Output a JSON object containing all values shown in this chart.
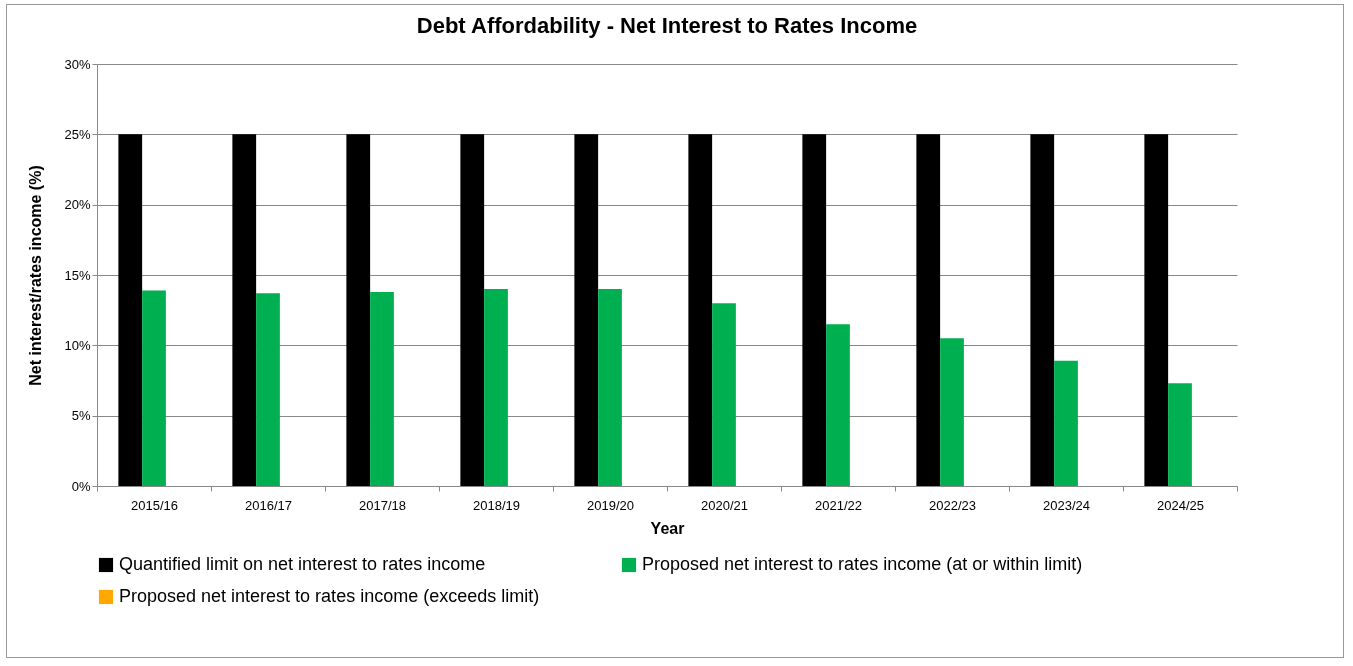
{
  "chart_data": {
    "type": "bar",
    "title": "Debt  Affordability - Net Interest to Rates Income",
    "xlabel": "Year",
    "ylabel": "Net interest/rates income (%)",
    "categories": [
      "2015/16",
      "2016/17",
      "2017/18",
      "2018/19",
      "2019/20",
      "2020/21",
      "2021/22",
      "2022/23",
      "2023/24",
      "2024/25"
    ],
    "series": [
      {
        "name": "Quantified limit on net interest to rates income",
        "color": "#000000",
        "values": [
          25,
          25,
          25,
          25,
          25,
          25,
          25,
          25,
          25,
          25
        ]
      },
      {
        "name": "Proposed net interest to rates income (at or within limit)",
        "color": "#00b050",
        "values": [
          13.9,
          13.7,
          13.8,
          14.0,
          14.0,
          13.0,
          11.5,
          10.5,
          8.9,
          7.3
        ]
      },
      {
        "name": "Proposed net interest to rates income (exceeds limit)",
        "color": "#ffa800",
        "values": [
          null,
          null,
          null,
          null,
          null,
          null,
          null,
          null,
          null,
          null
        ]
      }
    ],
    "ylim": [
      0,
      30
    ],
    "yticks": [
      {
        "value": 0,
        "label": "0%"
      },
      {
        "value": 5,
        "label": "5%"
      },
      {
        "value": 10,
        "label": "10%"
      },
      {
        "value": 15,
        "label": "15%"
      },
      {
        "value": 20,
        "label": "20%"
      },
      {
        "value": 25,
        "label": "25%"
      },
      {
        "value": 30,
        "label": "30%"
      }
    ],
    "grid": "y",
    "legend": "bottom"
  }
}
